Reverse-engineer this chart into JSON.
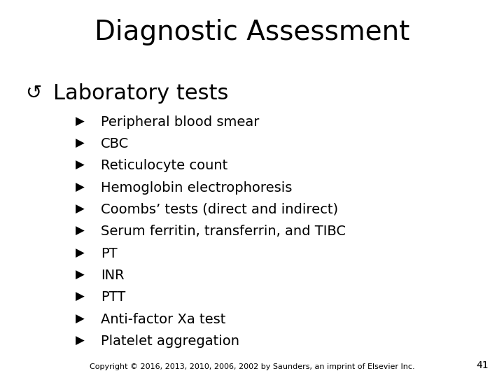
{
  "title": "Diagnostic Assessment",
  "background_color": "#ffffff",
  "title_fontsize": 28,
  "title_color": "#000000",
  "section_bullet": "↺",
  "section_text": "Laboratory tests",
  "section_fontsize": 22,
  "section_color": "#000000",
  "sub_bullet": "▶",
  "items": [
    "Peripheral blood smear",
    "CBC",
    "Reticulocyte count",
    "Hemoglobin electrophoresis",
    "Coombs’ tests (direct and indirect)",
    "Serum ferritin, transferrin, and TIBC",
    "PT",
    "INR",
    "PTT",
    "Anti-factor Xa test",
    "Platelet aggregation"
  ],
  "item_fontsize": 14,
  "item_color": "#000000",
  "footer_text": "Copyright © 2016, 2013, 2010, 2006, 2002 by Saunders, an imprint of Elsevier Inc.",
  "footer_fontsize": 8,
  "page_number": "41",
  "page_number_fontsize": 10
}
